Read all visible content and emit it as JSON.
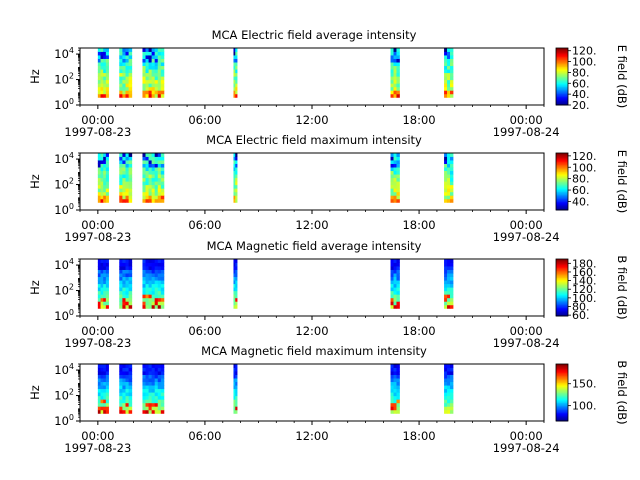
{
  "chart_data": [
    {
      "type": "heatmap",
      "title": "MCA  Electric field average intensity",
      "ylabel": "Hz",
      "yscale": "log",
      "ytick_labels": [
        {
          "base": "10",
          "exp": "0"
        },
        {
          "base": "10",
          "exp": "2"
        },
        {
          "base": "10",
          "exp": "4"
        }
      ],
      "x_tick_labels": [
        "00:00",
        "06:00",
        "12:00",
        "18:00",
        "00:00"
      ],
      "x_date_labels": [
        "1997-08-23",
        "1997-08-24"
      ],
      "xlim": [
        "1997-08-22T23:00",
        "1997-08-24T01:00"
      ],
      "ylim": [
        1,
        30000
      ],
      "colorbar": {
        "label": "E field (dB)",
        "range": [
          20,
          125
        ],
        "ticks": [
          "120.",
          "100.",
          "80.",
          "60.",
          "40.",
          "20."
        ]
      },
      "data_segments_hours": [
        [
          0.0,
          0.6
        ],
        [
          1.2,
          1.9
        ],
        [
          2.5,
          3.7
        ],
        [
          7.6,
          7.8
        ],
        [
          16.4,
          16.9
        ],
        [
          19.4,
          19.9
        ]
      ],
      "colormap": "jet",
      "gaps_color": "white"
    },
    {
      "type": "heatmap",
      "title": "MCA  Electric field maximum intensity",
      "ylabel": "Hz",
      "yscale": "log",
      "ytick_labels": [
        {
          "base": "10",
          "exp": "0"
        },
        {
          "base": "10",
          "exp": "2"
        },
        {
          "base": "10",
          "exp": "4"
        }
      ],
      "x_tick_labels": [
        "00:00",
        "06:00",
        "12:00",
        "18:00",
        "00:00"
      ],
      "x_date_labels": [
        "1997-08-23",
        "1997-08-24"
      ],
      "xlim": [
        "1997-08-22T23:00",
        "1997-08-24T01:00"
      ],
      "ylim": [
        1,
        30000
      ],
      "colorbar": {
        "label": "E field (dB)",
        "range": [
          25,
          125
        ],
        "ticks": [
          "120.",
          "100.",
          "80.",
          "60.",
          "40."
        ]
      },
      "data_segments_hours": [
        [
          0.0,
          0.6
        ],
        [
          1.2,
          1.9
        ],
        [
          2.5,
          3.7
        ],
        [
          7.6,
          7.8
        ],
        [
          16.4,
          16.9
        ],
        [
          19.4,
          19.9
        ]
      ],
      "colormap": "jet",
      "gaps_color": "white"
    },
    {
      "type": "heatmap",
      "title": "MCA  Magnetic field average intensity",
      "ylabel": "Hz",
      "yscale": "log",
      "ytick_labels": [
        {
          "base": "10",
          "exp": "0"
        },
        {
          "base": "10",
          "exp": "2"
        },
        {
          "base": "10",
          "exp": "4"
        }
      ],
      "x_tick_labels": [
        "00:00",
        "06:00",
        "12:00",
        "18:00",
        "00:00"
      ],
      "x_date_labels": [
        "1997-08-23",
        "1997-08-24"
      ],
      "xlim": [
        "1997-08-22T23:00",
        "1997-08-24T01:00"
      ],
      "ylim": [
        1,
        30000
      ],
      "colorbar": {
        "label": "B field (dB)",
        "range": [
          58,
          190
        ],
        "ticks": [
          "180.",
          "160.",
          "140.",
          "120.",
          "100.",
          "80.",
          "60."
        ]
      },
      "data_segments_hours": [
        [
          0.0,
          0.6
        ],
        [
          1.2,
          1.9
        ],
        [
          2.5,
          3.7
        ],
        [
          7.6,
          7.8
        ],
        [
          16.4,
          16.9
        ],
        [
          19.4,
          19.9
        ]
      ],
      "colormap": "jet",
      "gaps_color": "white"
    },
    {
      "type": "heatmap",
      "title": "MCA  Magnetic field maximum intensity",
      "ylabel": "Hz",
      "yscale": "log",
      "ytick_labels": [
        {
          "base": "10",
          "exp": "0"
        },
        {
          "base": "10",
          "exp": "2"
        },
        {
          "base": "10",
          "exp": "4"
        }
      ],
      "x_tick_labels": [
        "00:00",
        "06:00",
        "12:00",
        "18:00",
        "00:00"
      ],
      "x_date_labels": [
        "1997-08-23",
        "1997-08-24"
      ],
      "xlim": [
        "1997-08-22T23:00",
        "1997-08-24T01:00"
      ],
      "ylim": [
        1,
        30000
      ],
      "colorbar": {
        "label": "B field (dB)",
        "range": [
          65,
          195
        ],
        "ticks": [
          "150.",
          "100."
        ]
      },
      "data_segments_hours": [
        [
          0.0,
          0.6
        ],
        [
          1.2,
          1.9
        ],
        [
          2.5,
          3.7
        ],
        [
          7.6,
          7.8
        ],
        [
          16.4,
          16.9
        ],
        [
          19.4,
          19.9
        ]
      ],
      "colormap": "jet",
      "gaps_color": "white"
    }
  ]
}
